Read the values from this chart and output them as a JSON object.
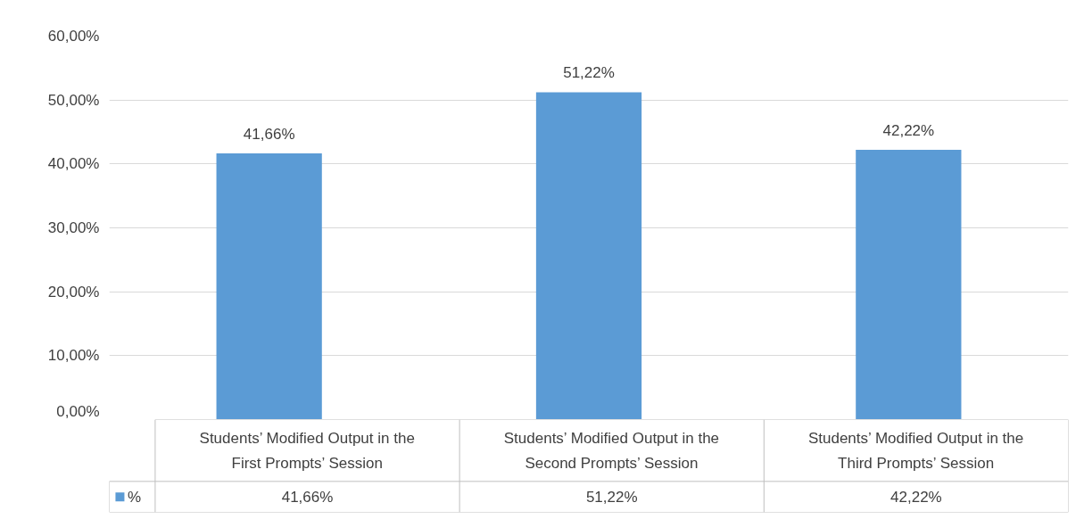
{
  "chart_data": {
    "type": "bar",
    "categories": [
      "Students’ Modified Output in the First Prompts’ Session",
      "Students’ Modified Output in the Second Prompts’ Session",
      "Students’ Modified Output in the Third Prompts’ Session"
    ],
    "series": [
      {
        "name": "%",
        "color": "#5b9bd5",
        "values": [
          41.66,
          51.22,
          42.22
        ],
        "value_labels": [
          "41,66%",
          "51,22%",
          "42,22%"
        ]
      }
    ],
    "ylim": [
      0,
      60
    ],
    "yticks": [
      {
        "value": 0,
        "label": "0,00%"
      },
      {
        "value": 10,
        "label": "10,00%"
      },
      {
        "value": 20,
        "label": "20,00%"
      },
      {
        "value": 30,
        "label": "30,00%"
      },
      {
        "value": 40,
        "label": "40,00%"
      },
      {
        "value": 50,
        "label": "50,00%"
      },
      {
        "value": 60,
        "label": "60,00%"
      }
    ],
    "grid": "y",
    "legend": "bottom"
  }
}
